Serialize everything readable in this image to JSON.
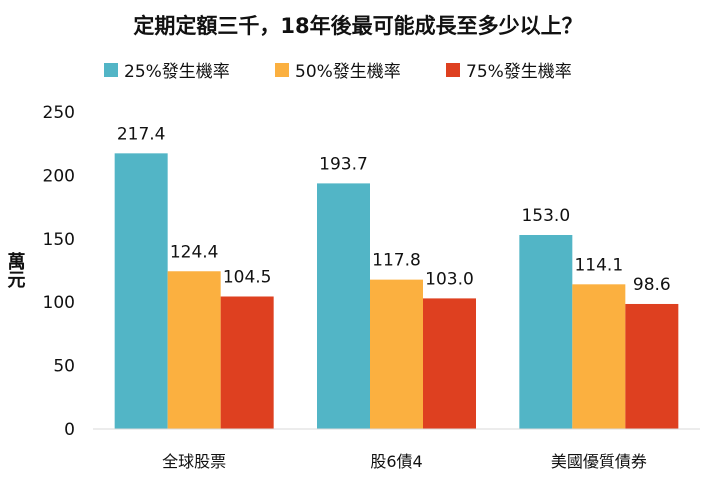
{
  "chart_data": {
    "type": "bar",
    "title": "定期定額三千，18年後最可能成長至多少以上？",
    "ylabel": "萬元",
    "xlabel": "",
    "ylim": [
      0,
      250
    ],
    "yticks": [
      0,
      50,
      100,
      150,
      200,
      250
    ],
    "categories": [
      "全球股票",
      "股6債4",
      "美國優質債券"
    ],
    "series": [
      {
        "name": "25%發生機率",
        "color": "#52b5c6",
        "values": [
          217.4,
          193.7,
          153.0
        ],
        "labels": [
          "217.4",
          "193.7",
          "153.0"
        ]
      },
      {
        "name": "50%發生機率",
        "color": "#fbb040",
        "values": [
          124.4,
          117.8,
          114.1
        ],
        "labels": [
          "124.4",
          "117.8",
          "114.1"
        ]
      },
      {
        "name": "75%發生機率",
        "color": "#de4020",
        "values": [
          104.5,
          103.0,
          98.6
        ],
        "labels": [
          "104.5",
          "103.0",
          "98.6"
        ]
      }
    ],
    "legend_position": "top",
    "grid": false
  }
}
